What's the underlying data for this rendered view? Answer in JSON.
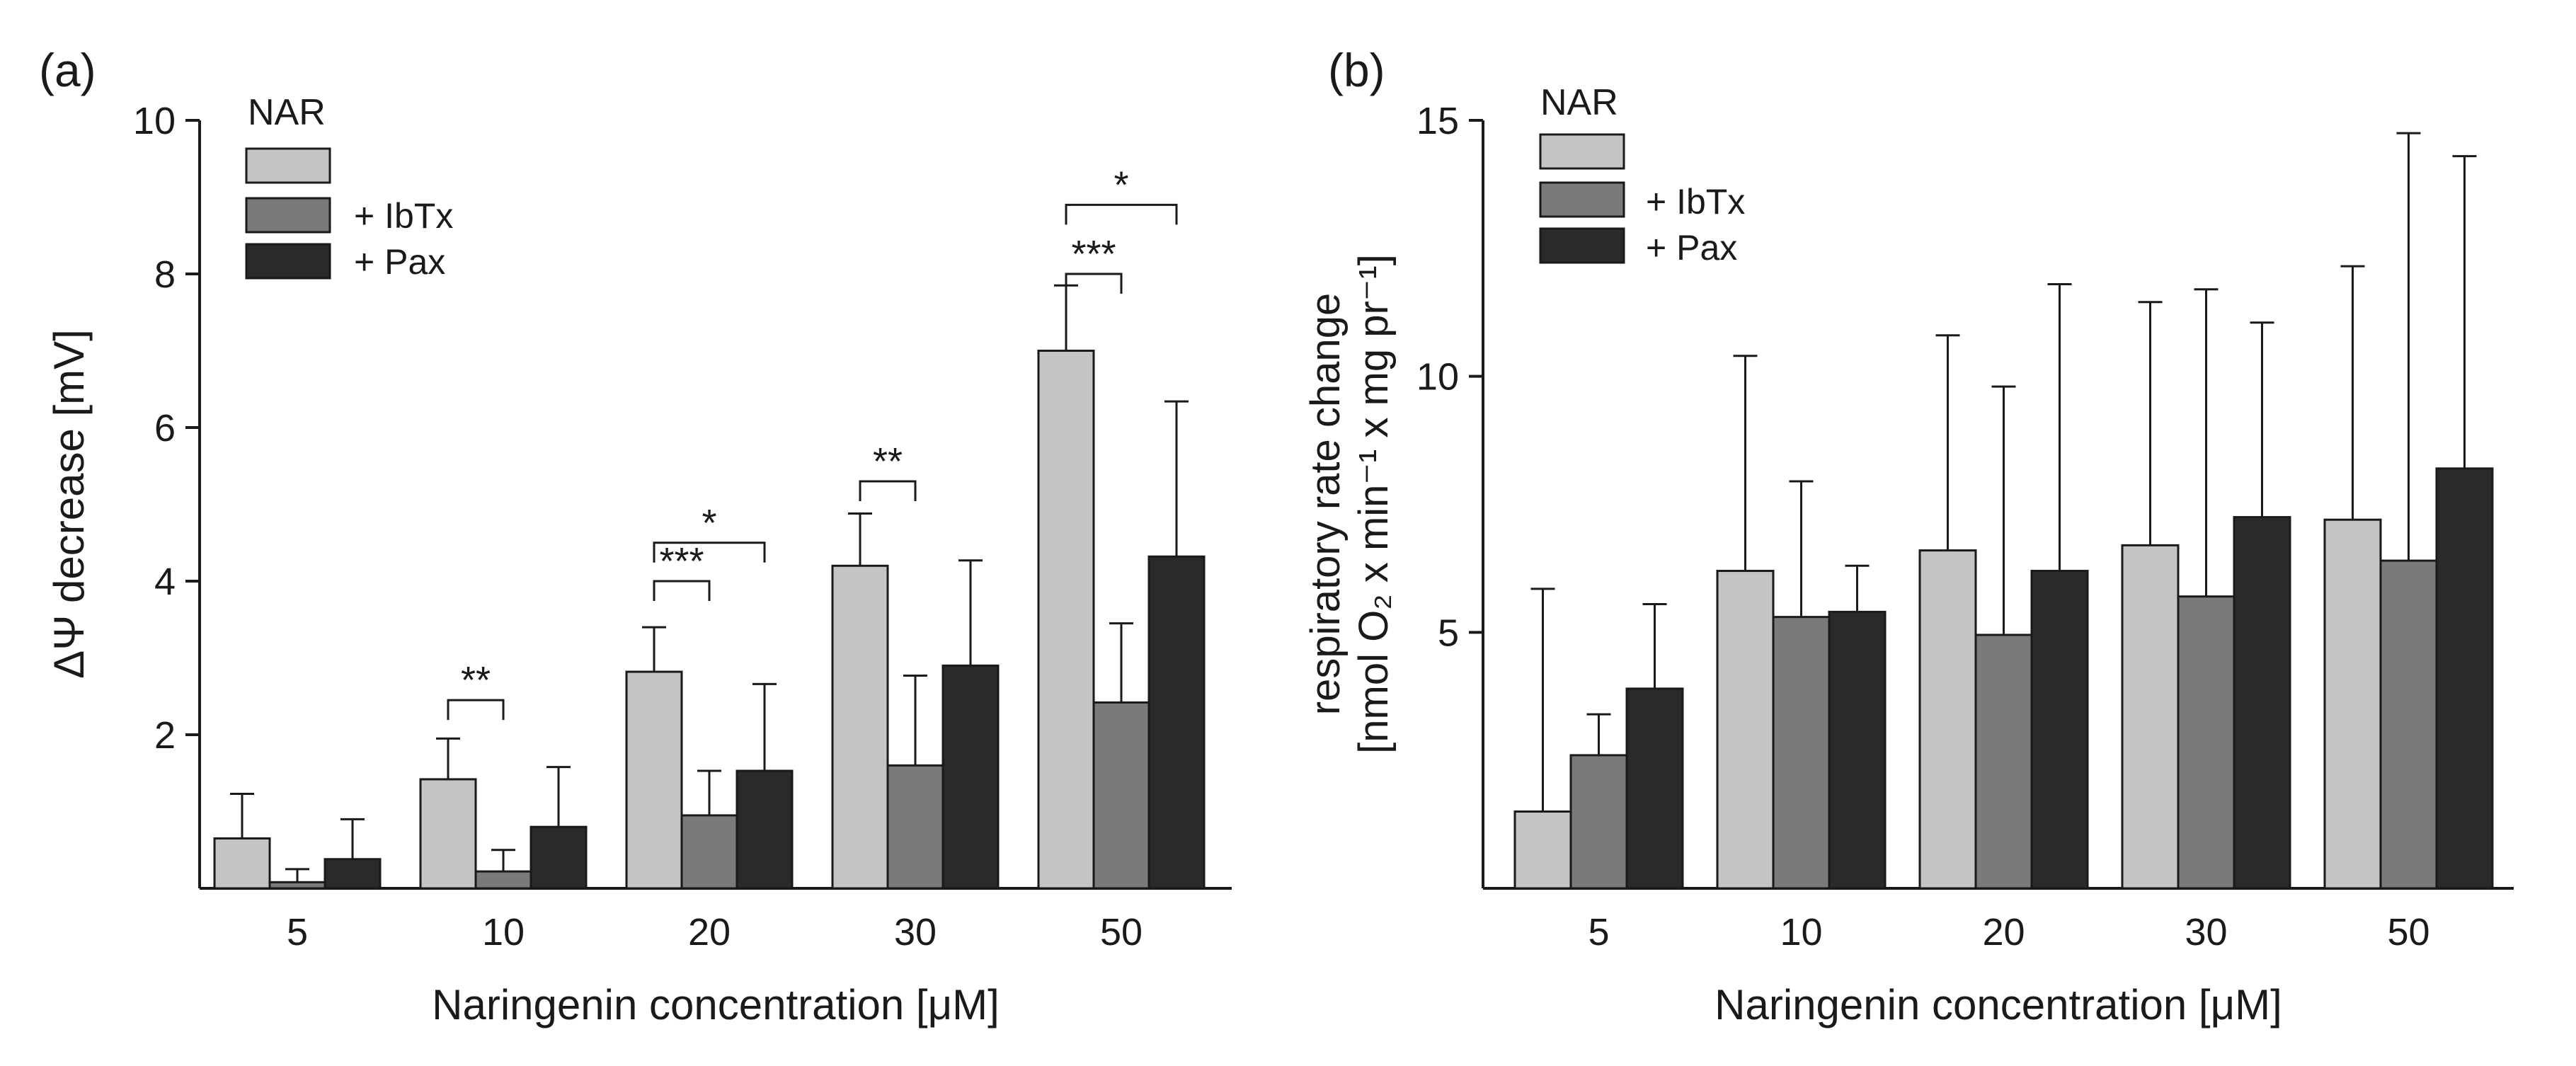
{
  "colors": {
    "nar": "#c4c4c4",
    "ibtx": "#7a7a7a",
    "pax": "#2a2a2a",
    "axis": "#1a1a1a"
  },
  "chart_data": [
    {
      "type": "bar",
      "panel_label": "(a)",
      "title": "",
      "xlabel": "Naringenin concentration [μM]",
      "ylabel": "ΔΨ decrease [mV]",
      "categories": [
        "5",
        "10",
        "20",
        "30",
        "50"
      ],
      "ylim": [
        0,
        10
      ],
      "yticks": [
        2,
        4,
        6,
        8,
        10
      ],
      "ytick_labels": [
        "2",
        "4",
        "6",
        "8",
        "10"
      ],
      "legend": {
        "title": "NAR",
        "labels": [
          "",
          "+ IbTx",
          "+ Pax"
        ],
        "placement": "top-left"
      },
      "series": [
        {
          "name": "NAR",
          "values": [
            0.65,
            1.42,
            2.82,
            4.2,
            7.0
          ],
          "errors": [
            0.58,
            0.53,
            0.58,
            0.68,
            0.85
          ]
        },
        {
          "name": "+ IbTx",
          "values": [
            0.08,
            0.22,
            0.95,
            1.6,
            2.42
          ],
          "errors": [
            0.17,
            0.28,
            0.58,
            1.17,
            1.03
          ]
        },
        {
          "name": "+ Pax",
          "values": [
            0.38,
            0.8,
            1.53,
            2.9,
            4.32
          ],
          "errors": [
            0.52,
            0.78,
            1.13,
            1.37,
            2.02
          ]
        }
      ],
      "significance": [
        {
          "group": 1,
          "from": 0,
          "to": 1,
          "y": 2.45,
          "label": "**"
        },
        {
          "group": 2,
          "from": 0,
          "to": 1,
          "y": 4.0,
          "label": "***"
        },
        {
          "group": 2,
          "from": 0,
          "to": 2,
          "y": 4.5,
          "label": "*"
        },
        {
          "group": 3,
          "from": 0,
          "to": 1,
          "y": 5.3,
          "label": "**"
        },
        {
          "group": 4,
          "from": 0,
          "to": 1,
          "y": 8.0,
          "label": "***"
        },
        {
          "group": 4,
          "from": 0,
          "to": 2,
          "y": 8.9,
          "label": "*"
        }
      ]
    },
    {
      "type": "bar",
      "panel_label": "(b)",
      "title": "",
      "xlabel": "Naringenin concentration [μM]",
      "ylabel": "respiratory rate change",
      "ylabel2": "[nmol O₂ x min⁻¹ x mg pr⁻¹]",
      "categories": [
        "5",
        "10",
        "20",
        "30",
        "50"
      ],
      "ylim": [
        0,
        15
      ],
      "yticks": [
        5,
        10,
        15
      ],
      "ytick_labels": [
        "5",
        "10",
        "15"
      ],
      "legend": {
        "title": "NAR",
        "labels": [
          "",
          "+ IbTx",
          "+ Pax"
        ],
        "placement": "top-left"
      },
      "series": [
        {
          "name": "NAR",
          "values": [
            1.5,
            6.2,
            6.6,
            6.7,
            7.2
          ],
          "errors": [
            4.35,
            4.2,
            4.2,
            4.75,
            4.95
          ]
        },
        {
          "name": "+ IbTx",
          "values": [
            2.6,
            5.3,
            4.95,
            5.7,
            6.4
          ],
          "errors": [
            0.8,
            2.65,
            4.85,
            6.0,
            8.35
          ]
        },
        {
          "name": "+ Pax",
          "values": [
            3.9,
            5.4,
            6.2,
            7.25,
            8.2
          ],
          "errors": [
            1.65,
            0.9,
            5.6,
            3.8,
            6.1
          ]
        }
      ],
      "significance": []
    }
  ]
}
